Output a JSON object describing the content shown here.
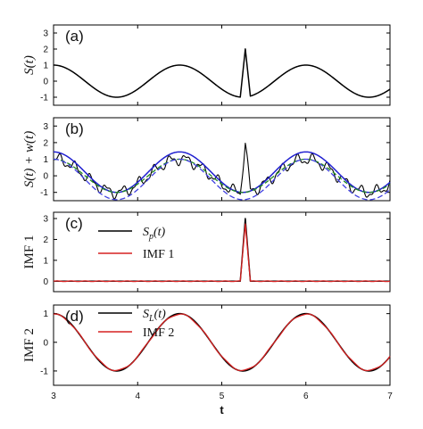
{
  "colors": {
    "signal": "#000000",
    "imf": "#d62020",
    "envelope_upper": "#2020d0",
    "envelope_mean": "#208a20",
    "envelope_lower": "#4040e0"
  },
  "chart_data": {
    "type": "line",
    "xlabel": "t",
    "xlim": [
      3,
      7
    ],
    "x_ticks": [
      "3",
      "4",
      "5",
      "6",
      "7"
    ],
    "signal_model": {
      "sinusoid_period": 1.5,
      "sinusoid_amplitude": 1,
      "sinusoid_phase_ref": 3,
      "pulse_center": 5.28,
      "pulse_height": 3,
      "pulse_width": 0.12
    },
    "panels": [
      {
        "letter": "(a)",
        "ylabel": "S(t)",
        "ylim": [
          -1.5,
          3.5
        ],
        "y_ticks": [
          "-1",
          "0",
          "1",
          "2",
          "3"
        ],
        "y_tick_values": [
          -1,
          0,
          1,
          2,
          3
        ],
        "series": [
          {
            "kind": "signal"
          }
        ]
      },
      {
        "letter": "(b)",
        "ylabel": "S(t) + w(t)",
        "ylim": [
          -1.5,
          3.5
        ],
        "y_ticks": [
          "-1",
          "0",
          "1",
          "2",
          "3"
        ],
        "y_tick_values": [
          -1,
          0,
          1,
          2,
          3
        ],
        "series": [
          {
            "kind": "noisy"
          },
          {
            "kind": "envelopes"
          }
        ]
      },
      {
        "letter": "(c)",
        "ylabel": "IMF 1",
        "ylim": [
          -0.5,
          3.3
        ],
        "y_ticks": [
          "0",
          "1",
          "2",
          "3"
        ],
        "y_tick_values": [
          0,
          1,
          2,
          3
        ],
        "legend": {
          "items": [
            {
              "base": "S",
              "sub": "p",
              "suffix": "(t)"
            },
            {
              "base": "IMF 1",
              "sub": "",
              "suffix": ""
            }
          ]
        },
        "series": [
          {
            "kind": "pulse"
          }
        ]
      },
      {
        "letter": "(d)",
        "ylabel": "IMF 2",
        "ylim": [
          -1.5,
          1.3
        ],
        "y_ticks": [
          "-1",
          "0",
          "1"
        ],
        "y_tick_values": [
          -1,
          0,
          1
        ],
        "legend": {
          "items": [
            {
              "base": "S",
              "sub": "L",
              "suffix": "(t)"
            },
            {
              "base": "IMF 2",
              "sub": "",
              "suffix": ""
            }
          ]
        },
        "series": [
          {
            "kind": "sinusoid"
          }
        ]
      }
    ]
  }
}
